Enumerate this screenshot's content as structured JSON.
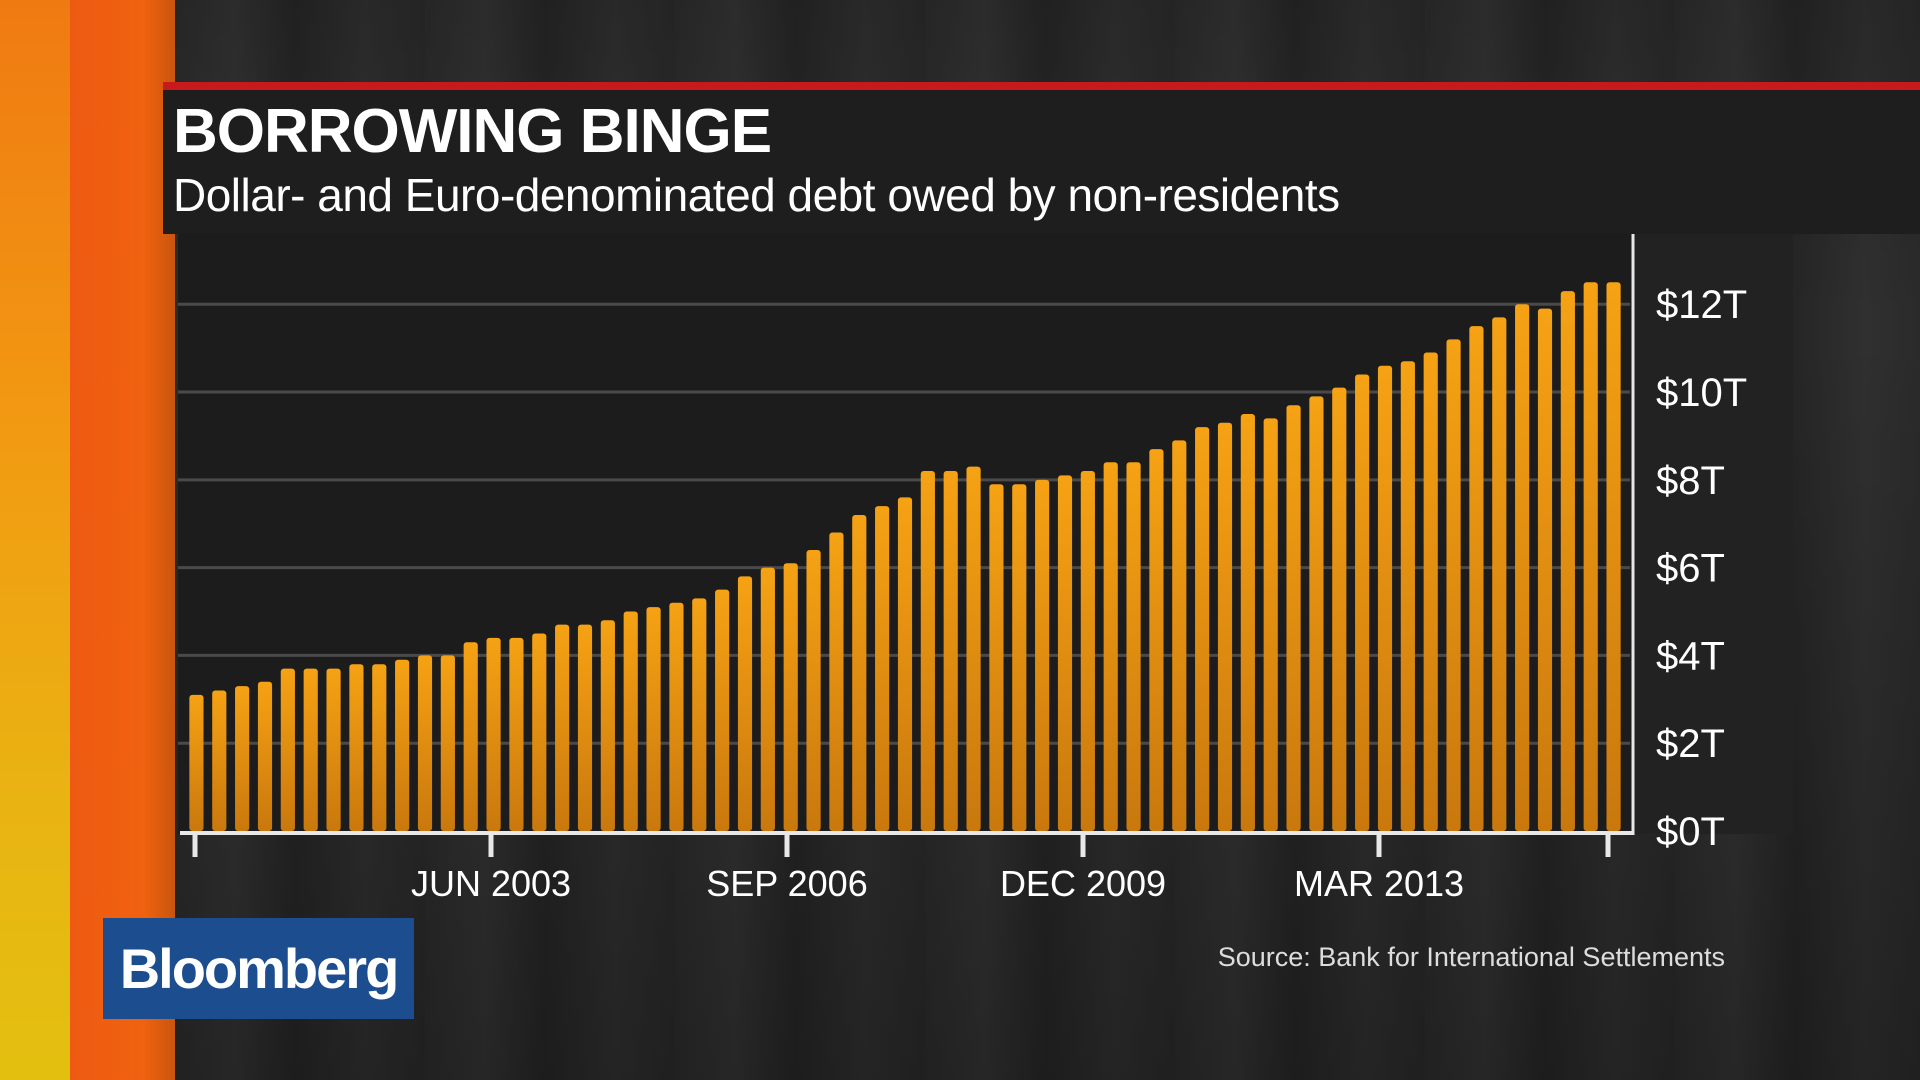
{
  "chart_data": {
    "type": "bar",
    "title": "BORROWING BINGE",
    "subtitle": "Dollar- and Euro-denominated debt owed by non-residents",
    "source": "Source: Bank for International Settlements",
    "x_tick_labels": [
      "JUN 2003",
      "SEP 2006",
      "DEC 2009",
      "MAR 2013"
    ],
    "y_tick_labels": [
      "$0T",
      "$2T",
      "$4T",
      "$6T",
      "$8T",
      "$10T",
      "$12T"
    ],
    "ylim": [
      0,
      13.6
    ],
    "grid": true,
    "bar_color": "#f29a12",
    "values": [
      3.1,
      3.2,
      3.3,
      3.4,
      3.7,
      3.7,
      3.7,
      3.8,
      3.8,
      3.9,
      4.0,
      4.0,
      4.3,
      4.4,
      4.4,
      4.5,
      4.7,
      4.7,
      4.8,
      5.0,
      5.1,
      5.2,
      5.3,
      5.5,
      5.8,
      6.0,
      6.1,
      6.4,
      6.8,
      7.2,
      7.4,
      7.6,
      8.2,
      8.2,
      8.3,
      7.9,
      7.9,
      8.0,
      8.1,
      8.2,
      8.4,
      8.4,
      8.7,
      8.9,
      9.2,
      9.3,
      9.5,
      9.4,
      9.7,
      9.9,
      10.1,
      10.4,
      10.6,
      10.7,
      10.9,
      11.2,
      11.5,
      11.7,
      12.0,
      11.9,
      12.3,
      12.5,
      12.5
    ]
  },
  "brand": {
    "name": "Bloomberg",
    "color": "#1c4e8f"
  },
  "colors": {
    "accent_red": "#c8191c",
    "panel": "#1e1e1e"
  }
}
